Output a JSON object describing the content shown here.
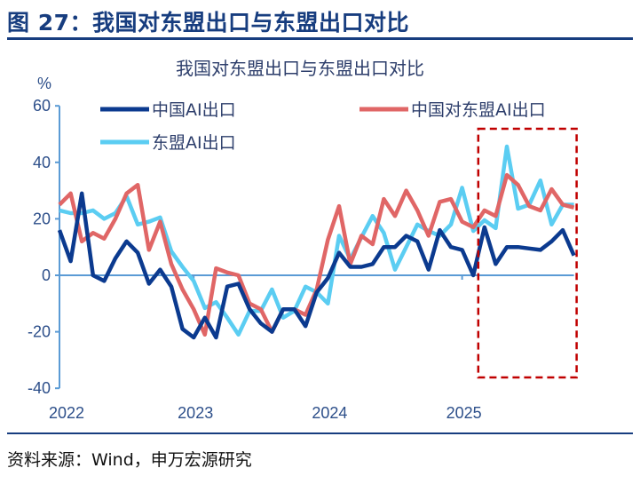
{
  "figure_title": "图 27：我国对东盟出口与东盟出口对比",
  "source": "资料来源：Wind，申万宏源研究",
  "chart_data": {
    "type": "line",
    "title": "我国对东盟出口与东盟出口对比",
    "ylabel": "%",
    "xlabel": "",
    "ylim": [
      -40,
      60
    ],
    "yticks": [
      -40,
      -20,
      0,
      20,
      40,
      60
    ],
    "xtick_labels": [
      "2022",
      "2023",
      "2024",
      "2025"
    ],
    "grid": false,
    "legend": "top",
    "x": [
      "2022-01",
      "2022-02",
      "2022-03",
      "2022-04",
      "2022-05",
      "2022-06",
      "2022-07",
      "2022-08",
      "2022-09",
      "2022-10",
      "2022-11",
      "2022-12",
      "2023-01",
      "2023-02",
      "2023-03",
      "2023-04",
      "2023-05",
      "2023-06",
      "2023-07",
      "2023-08",
      "2023-09",
      "2023-10",
      "2023-11",
      "2023-12",
      "2024-01",
      "2024-02",
      "2024-03",
      "2024-04",
      "2024-05",
      "2024-06",
      "2024-07",
      "2024-08",
      "2024-09",
      "2024-10",
      "2024-11",
      "2024-12",
      "2025-01",
      "2025-02",
      "2025-03",
      "2025-04",
      "2025-05",
      "2025-06",
      "2025-07",
      "2025-08",
      "2025-09",
      "2025-10",
      "2025-11"
    ],
    "series": [
      {
        "name": "中国AI出口",
        "color": "#0b3a8f",
        "values": [
          16,
          5,
          29,
          0,
          -2,
          6,
          12,
          8,
          -3,
          2,
          -4,
          -19,
          -22,
          -15,
          -22,
          -4,
          -3,
          -12,
          -17,
          -20,
          -12,
          -12,
          -18,
          -6,
          -1,
          8,
          3,
          3,
          4,
          10,
          10,
          14,
          12,
          2,
          16,
          10,
          9,
          0,
          17,
          4,
          10,
          10,
          9.5,
          9,
          12,
          16,
          7
        ]
      },
      {
        "name": "中国对东盟AI出口",
        "color": "#e06666",
        "values": [
          25,
          29,
          12,
          15,
          13,
          20,
          29,
          32,
          9,
          19,
          4,
          -5,
          -12,
          -21,
          2.5,
          1,
          0,
          -10,
          -12,
          -20,
          -12,
          -12,
          -14,
          -5,
          12.6,
          24.5,
          4,
          14,
          11,
          27,
          21,
          30,
          23,
          14,
          26,
          27,
          19,
          17,
          23,
          21,
          35.5,
          32,
          24.5,
          23,
          30.5,
          25,
          24
        ]
      },
      {
        "name": "东盟AI出口",
        "color": "#5bcdf2",
        "values": [
          23,
          22,
          22,
          23,
          20,
          22,
          28,
          18,
          19,
          20.5,
          8.5,
          3,
          -2,
          -11.6,
          -9.5,
          -15,
          -21,
          -12.6,
          -12.6,
          -5,
          -15,
          -12.6,
          -4,
          -6,
          -10,
          14,
          5.7,
          13.5,
          21,
          15,
          2,
          10,
          18,
          15.7,
          14,
          18,
          31,
          15.7,
          19.5,
          16.7,
          45.6,
          23.6,
          25,
          33.6,
          18,
          25,
          25
        ]
      }
    ],
    "highlight_box": {
      "color": "#c00000",
      "style": "dashed",
      "from": "2025-03",
      "to": "2025-11"
    }
  }
}
